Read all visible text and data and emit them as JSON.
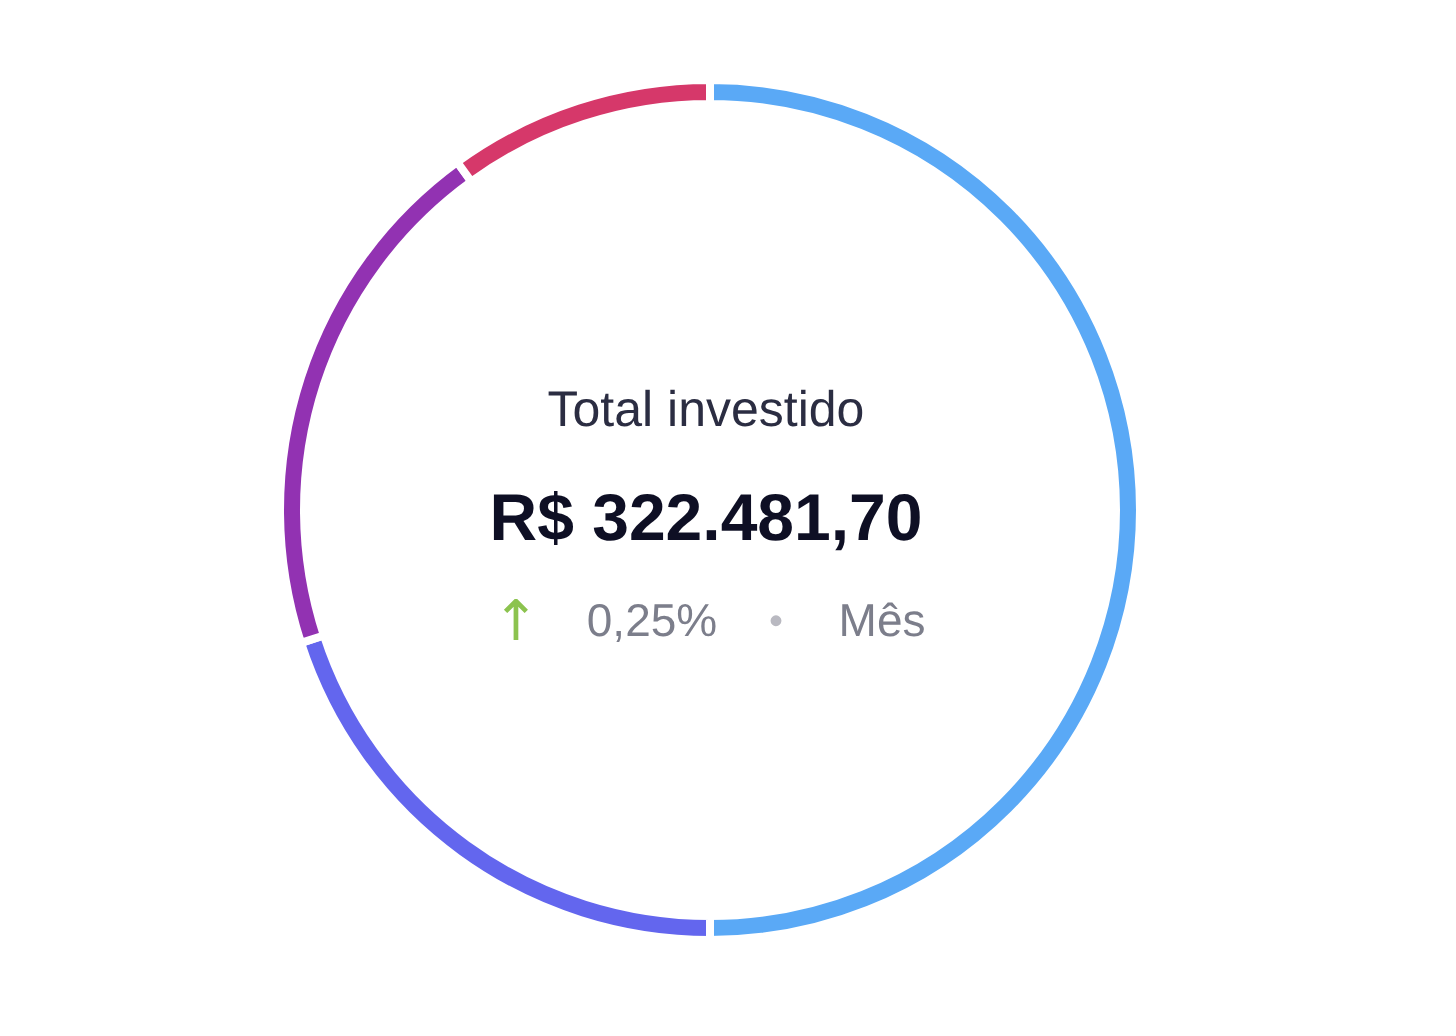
{
  "chart_data": {
    "type": "donut",
    "categories": [
      null,
      null,
      null,
      null
    ],
    "values": [
      50,
      20,
      20,
      10
    ],
    "colors": [
      "#5aa9f6",
      "#6366ee",
      "#9232b2",
      "#d6386a"
    ],
    "annotations": [
      "Total investido",
      "R$ 322.481,70",
      "↑",
      "0,25%",
      "•",
      "Mês"
    ]
  }
}
